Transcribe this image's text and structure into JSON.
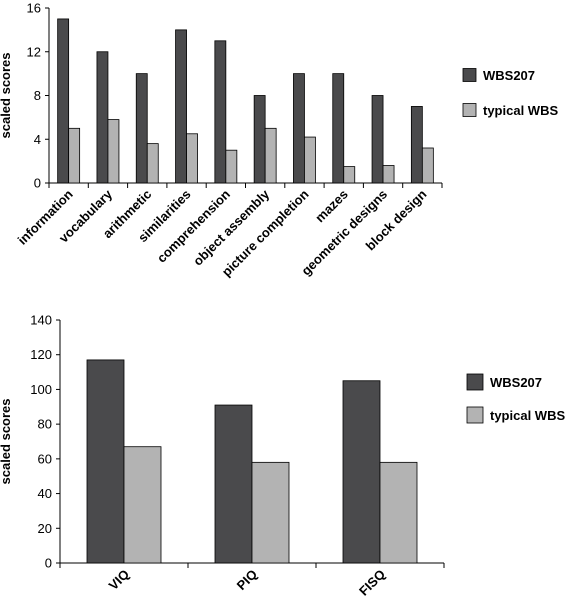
{
  "chart_data": [
    {
      "type": "bar",
      "categories": [
        "information",
        "vocabulary",
        "arithmetic",
        "similarities",
        "comprehension",
        "object assembly",
        "picture completion",
        "mazes",
        "geometric designs",
        "block design"
      ],
      "series": [
        {
          "name": "WBS207",
          "values": [
            15,
            12,
            10,
            14,
            13,
            8,
            10,
            10,
            8,
            7
          ],
          "color": "#4a4a4c"
        },
        {
          "name": "typical WBS",
          "values": [
            5,
            5.8,
            3.6,
            4.5,
            3,
            5,
            4.2,
            1.5,
            1.6,
            3.2
          ],
          "color": "#b3b3b3"
        }
      ],
      "xlabel": "",
      "ylabel": "scaled scores",
      "ylim": [
        0,
        16
      ],
      "yticks": [
        0,
        4,
        8,
        12,
        16
      ],
      "legend_position": "right"
    },
    {
      "type": "bar",
      "categories": [
        "VIQ",
        "PIQ",
        "FISQ"
      ],
      "series": [
        {
          "name": "WBS207",
          "values": [
            117,
            91,
            105
          ],
          "color": "#4a4a4c"
        },
        {
          "name": "typical WBS",
          "values": [
            67,
            58,
            58
          ],
          "color": "#b3b3b3"
        }
      ],
      "xlabel": "",
      "ylabel": "scaled scores",
      "ylim": [
        0,
        140
      ],
      "yticks": [
        0,
        20,
        40,
        60,
        80,
        100,
        120,
        140
      ],
      "legend_position": "right"
    }
  ]
}
